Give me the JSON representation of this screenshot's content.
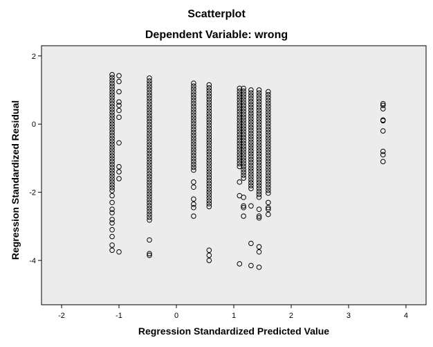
{
  "chart_data": {
    "type": "scatter",
    "title": "Scatterplot",
    "subtitle": "Dependent Variable: wrong",
    "xlabel": "Regression Standardized Predicted Value",
    "ylabel": "Regression Standardized Residual",
    "xlim": [
      -2.35,
      4.35
    ],
    "ylim": [
      -5.3,
      2.3
    ],
    "xticks": [
      -2,
      -1,
      0,
      1,
      2,
      3,
      4
    ],
    "yticks": [
      2,
      0,
      -2,
      -4
    ],
    "background": "#ececec",
    "marker_color": "#000000",
    "clusters": [
      {
        "x": -1.12,
        "ymin": -1.95,
        "ymax": 1.45,
        "extra": [
          -2.1,
          -2.3,
          -2.5,
          -2.6,
          -2.8,
          -2.9,
          -3.1,
          -3.3,
          -3.55,
          -3.7
        ]
      },
      {
        "x": -1.0,
        "ymin": null,
        "ymax": null,
        "extra": [
          1.42,
          1.25,
          0.95,
          0.65,
          0.55,
          0.4,
          0.2,
          -0.55,
          -1.25,
          -1.4,
          -1.6,
          -3.75
        ]
      },
      {
        "x": -0.47,
        "ymin": -2.85,
        "ymax": 1.35,
        "extra": [
          -3.4,
          -3.8,
          -3.85
        ]
      },
      {
        "x": 0.3,
        "ymin": -1.35,
        "ymax": 1.2,
        "extra": [
          -1.7,
          -1.85,
          -2.2,
          -2.35,
          -2.45,
          -2.7
        ]
      },
      {
        "x": 0.57,
        "ymin": -2.45,
        "ymax": 1.15,
        "extra": [
          -3.7,
          -3.85,
          -4.0
        ]
      },
      {
        "x": 1.1,
        "ymin": -1.3,
        "ymax": 1.05,
        "extra": [
          -1.7,
          -2.1,
          -4.1
        ]
      },
      {
        "x": 1.17,
        "ymin": -1.6,
        "ymax": 1.05,
        "extra": [
          -2.15,
          -2.4,
          -2.45,
          -2.7
        ]
      },
      {
        "x": 1.3,
        "ymin": -1.9,
        "ymax": 1.0,
        "extra": [
          -2.4,
          -3.5,
          -4.15
        ]
      },
      {
        "x": 1.44,
        "ymin": -2.2,
        "ymax": 1.0,
        "extra": [
          -2.5,
          -2.7,
          -2.75,
          -3.6,
          -3.75,
          -4.2
        ]
      },
      {
        "x": 1.6,
        "ymin": -2.05,
        "ymax": 0.95,
        "extra": [
          -2.3,
          -2.45,
          -2.5,
          -2.65
        ]
      },
      {
        "x": 3.6,
        "ymin": null,
        "ymax": null,
        "extra": [
          0.6,
          0.55,
          0.45,
          0.12,
          0.1,
          -0.2,
          -0.8,
          -0.9,
          -1.1
        ]
      }
    ]
  }
}
